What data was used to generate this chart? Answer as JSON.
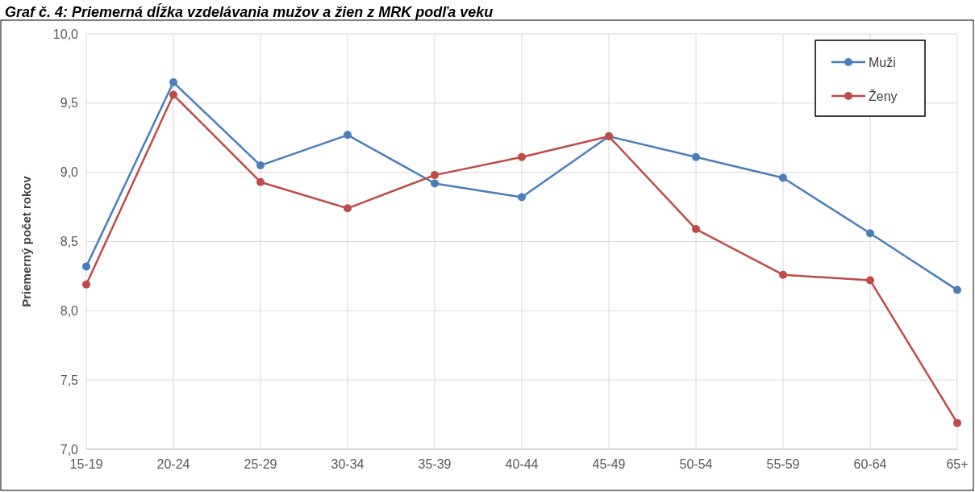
{
  "chart_data": {
    "type": "line",
    "title": "Graf č. 4: Priemerná dĺžka vzdelávania mužov a žien z MRK podľa veku",
    "ylabel": "Priemerný počet rokov",
    "categories": [
      "15-19",
      "20-24",
      "25-29",
      "30-34",
      "35-39",
      "40-44",
      "45-49",
      "50-54",
      "55-59",
      "60-64",
      "65+"
    ],
    "series": [
      {
        "name": "Muži",
        "color": "#4a7ebb",
        "values": [
          8.32,
          9.65,
          9.05,
          9.27,
          8.92,
          8.82,
          9.26,
          9.11,
          8.96,
          8.56,
          8.15
        ]
      },
      {
        "name": "Ženy",
        "color": "#be4b48",
        "values": [
          8.19,
          9.56,
          8.93,
          8.74,
          8.98,
          9.11,
          9.26,
          8.59,
          8.26,
          8.22,
          7.19
        ]
      }
    ],
    "ylim": [
      7,
      10
    ],
    "yticks": [
      {
        "value": 7,
        "label": "7,0"
      },
      {
        "value": 7.5,
        "label": "7,5"
      },
      {
        "value": 8,
        "label": "8,0"
      },
      {
        "value": 8.5,
        "label": "8,5"
      },
      {
        "value": 9,
        "label": "9,0"
      },
      {
        "value": 9.5,
        "label": "9,5"
      },
      {
        "value": 10,
        "label": "10,0"
      }
    ],
    "grid": true,
    "legend": "top right",
    "marker": "circle",
    "line_style": "solid"
  }
}
